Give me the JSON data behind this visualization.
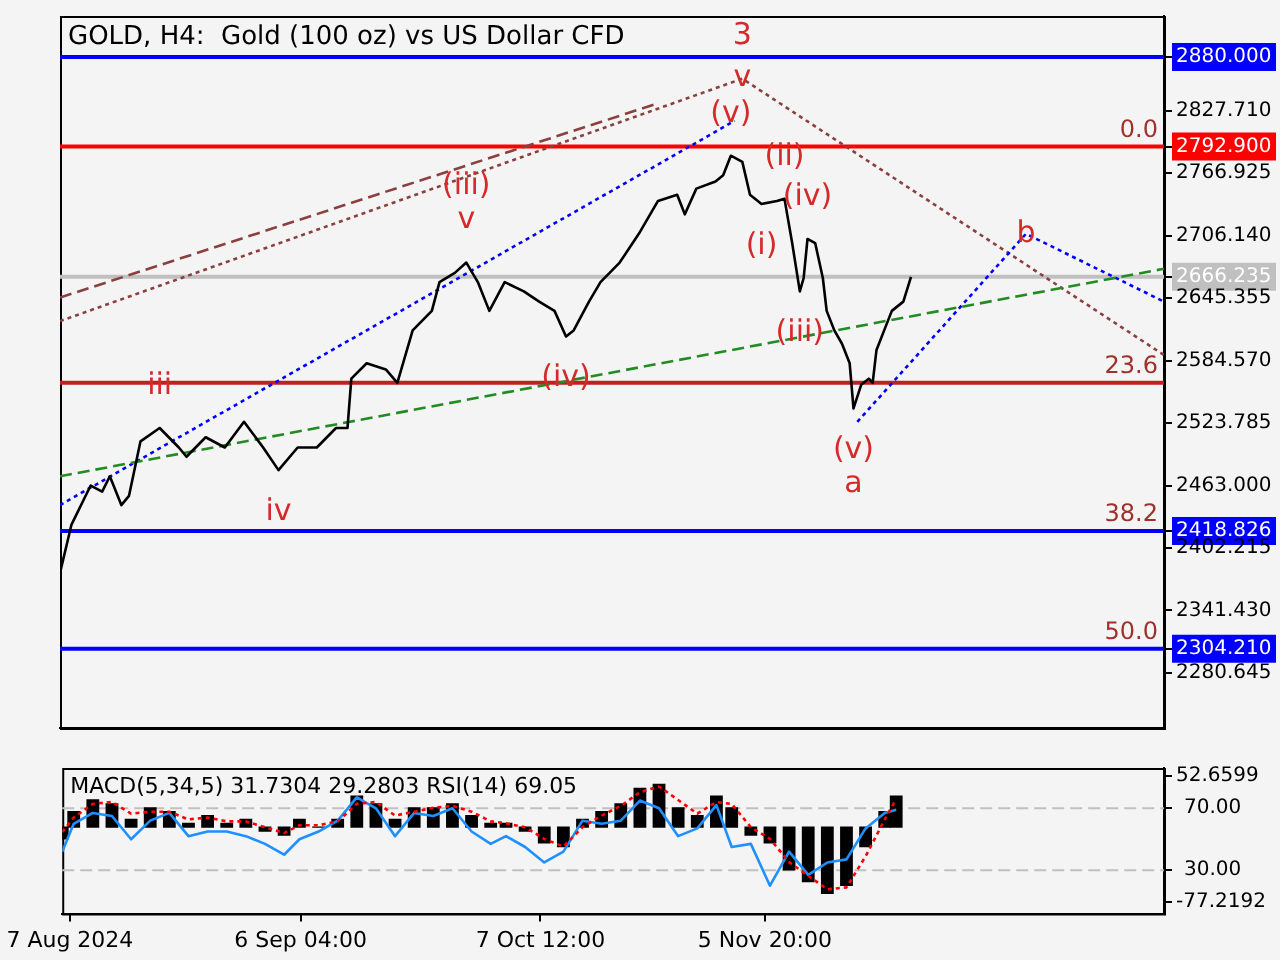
{
  "chart_data": [
    {
      "type": "line",
      "title": "GOLD, H4:  Gold (100 oz) vs US Dollar CFD",
      "xlim": [
        "2024-08-06",
        "2024-12-28"
      ],
      "ylim": [
        2227,
        2920
      ],
      "tick_labels": "y",
      "yticks": [
        {
          "value": 2880,
          "label": "2880.000"
        },
        {
          "value": 2827.71,
          "label": "2827.710"
        },
        {
          "value": 2792.9,
          "label": "2792.900"
        },
        {
          "value": 2766.925,
          "label": "2766.925"
        },
        {
          "value": 2706.14,
          "label": "2706.140"
        },
        {
          "value": 2666.235,
          "label": "2666.235"
        },
        {
          "value": 2645.355,
          "label": "2645.355"
        },
        {
          "value": 2584.57,
          "label": "2584.570"
        },
        {
          "value": 2523.785,
          "label": "2523.785"
        },
        {
          "value": 2463,
          "label": "2463.000"
        },
        {
          "value": 2418.826,
          "label": "2418.826"
        },
        {
          "value": 2402.215,
          "label": "2402.215"
        },
        {
          "value": 2341.43,
          "label": "2341.430"
        },
        {
          "value": 2304.21,
          "label": "2304.210"
        },
        {
          "value": 2280.645,
          "label": "2280.645"
        }
      ],
      "series": [
        {
          "color": "#000000",
          "line_style": "solid",
          "x": [
            "2024-08-06",
            "2024-08-07T12:00",
            "2024-08-10",
            "2024-08-11T12:00",
            "2024-08-12T12:00",
            "2024-08-14",
            "2024-08-15",
            "2024-08-16T12:00",
            "2024-08-19",
            "2024-08-21T12:00",
            "2024-08-22T12:00",
            "2024-08-25",
            "2024-08-27T12:00",
            "2024-08-30",
            "2024-09-01T12:00",
            "2024-09-03T12:00",
            "2024-09-06",
            "2024-09-08T12:00",
            "2024-09-11",
            "2024-09-12T12:00",
            "2024-09-13",
            "2024-09-15",
            "2024-09-17T12:00",
            "2024-09-19",
            "2024-09-21",
            "2024-09-23T12:00",
            "2024-09-24T12:00",
            "2024-09-26T12:00",
            "2024-09-28",
            "2024-09-29T12:00",
            "2024-10-01",
            "2024-10-03",
            "2024-10-05T12:00",
            "2024-10-07T12:00",
            "2024-10-09T12:00",
            "2024-10-11",
            "2024-10-12",
            "2024-10-14",
            "2024-10-15T12:00",
            "2024-10-18",
            "2024-10-20T12:00",
            "2024-10-23",
            "2024-10-25T12:00",
            "2024-10-26T12:00",
            "2024-10-28",
            "2024-10-30T12:00",
            "2024-10-31T12:00",
            "2024-11-01T12:00",
            "2024-11-03",
            "2024-11-04",
            "2024-11-05T12:00",
            "2024-11-07T12:00",
            "2024-11-08T12:00",
            "2024-11-09T12:00",
            "2024-11-10T12:00",
            "2024-11-11",
            "2024-11-11T12:00",
            "2024-11-12T12:00",
            "2024-11-13T12:00",
            "2024-11-14",
            "2024-11-15",
            "2024-11-16",
            "2024-11-17",
            "2024-11-17T12:00",
            "2024-11-18T12:00",
            "2024-11-19T12:00",
            "2024-11-20",
            "2024-11-20T12:00",
            "2024-11-21T12:00",
            "2024-11-22T12:00",
            "2024-11-24",
            "2024-11-25"
          ],
          "values": [
            2378,
            2425,
            2463,
            2457,
            2472,
            2444,
            2453,
            2506,
            2519,
            2500,
            2491,
            2510,
            2500,
            2525,
            2500,
            2478,
            2500,
            2500,
            2519,
            2519,
            2567,
            2582,
            2576,
            2563,
            2614,
            2633,
            2661,
            2670,
            2680,
            2661,
            2633,
            2661,
            2652,
            2642,
            2633,
            2608,
            2614,
            2642,
            2661,
            2680,
            2708,
            2740,
            2746,
            2727,
            2752,
            2759,
            2765,
            2784,
            2778,
            2746,
            2737,
            2740,
            2742,
            2699,
            2652,
            2665,
            2703,
            2699,
            2665,
            2633,
            2614,
            2601,
            2582,
            2538,
            2561,
            2567,
            2563,
            2595,
            2614,
            2633,
            2642,
            2666
          ]
        },
        {
          "color": "#228b22",
          "line_style": "dashed",
          "x": [
            "2024-08-06",
            "2024-12-28"
          ],
          "values": [
            2472,
            2674
          ]
        },
        {
          "color": "#0000ff",
          "line_style": "dotted",
          "x": [
            "2024-08-06",
            "2024-11-02"
          ],
          "values": [
            2444,
            2818
          ]
        },
        {
          "color": "#0000ff",
          "line_style": "dotted",
          "x": [
            "2024-11-18",
            "2024-12-10",
            "2024-12-28"
          ],
          "values": [
            2525,
            2708,
            2642
          ]
        },
        {
          "color": "#8b4040",
          "line_style": "dotted",
          "x": [
            "2024-08-06",
            "2024-11-03",
            "2024-12-28"
          ],
          "values": [
            2623,
            2859,
            2590
          ]
        },
        {
          "color": "#8b4040",
          "line_style": "dashed",
          "x": [
            "2024-08-06",
            "2024-10-23"
          ],
          "values": [
            2646,
            2835
          ]
        }
      ],
      "ref_lines": [
        {
          "axis": "y",
          "value": 2880,
          "color": "#0000ff"
        },
        {
          "axis": "y",
          "value": 2792.9,
          "color": "#ff0000"
        },
        {
          "axis": "y",
          "value": 2666.235,
          "color": "#c0c0c0"
        },
        {
          "axis": "y",
          "value": 2563,
          "color": "#c02020"
        },
        {
          "axis": "y",
          "value": 2418.826,
          "color": "#0000ff"
        },
        {
          "axis": "y",
          "value": 2304.21,
          "color": "#0000ff"
        }
      ],
      "annotations": [
        {
          "text": "v",
          "x": "2024-11-03",
          "y": 2859
        },
        {
          "text": "3",
          "x": "2024-11-03",
          "y": 2859
        },
        {
          "text": "(v)",
          "x": "2024-11-01T12:00",
          "y": 2784
        },
        {
          "text": "v",
          "x": "2024-09-28",
          "y": 2680
        },
        {
          "text": "(iii)",
          "x": "2024-09-28",
          "y": 2680
        },
        {
          "text": "iii",
          "x": "2024-08-19",
          "y": 2519
        },
        {
          "text": "iv",
          "x": "2024-09-03T12:00",
          "y": 2478
        },
        {
          "text": "(iv)",
          "x": "2024-10-11",
          "y": 2608
        },
        {
          "text": "(ii)",
          "x": "2024-11-08T12:00",
          "y": 2742
        },
        {
          "text": "(iv)",
          "x": "2024-11-11T12:00",
          "y": 2703
        },
        {
          "text": "(i)",
          "x": "2024-11-05T12:00",
          "y": 2737
        },
        {
          "text": "(iii)",
          "x": "2024-11-10T12:00",
          "y": 2652
        },
        {
          "text": "(v)",
          "x": "2024-11-17T12:00",
          "y": 2538
        },
        {
          "text": "a",
          "x": "2024-11-17T12:00",
          "y": 2538
        },
        {
          "text": "b",
          "x": "2024-12-10",
          "y": 2708
        },
        {
          "text": "0.0",
          "x": "2024-12-28",
          "y": 2792.9
        },
        {
          "text": "23.6",
          "x": "2024-12-28",
          "y": 2563
        },
        {
          "text": "38.2",
          "x": "2024-12-28",
          "y": 2418.826
        },
        {
          "text": "50.0",
          "x": "2024-12-28",
          "y": 2304.21
        }
      ]
    },
    {
      "type": "bar",
      "title": "MACD(5,34,5) 31.7304 29.2803 RSI(14) 69.05",
      "xlim": [
        "2024-08-06",
        "2024-12-28"
      ],
      "xticks": [
        {
          "value": "2024-08-07",
          "label": "7 Aug 2024"
        },
        {
          "value": "2024-09-06T04:00",
          "label": "6 Sep 04:00"
        },
        {
          "value": "2024-10-07T12:00",
          "label": "7 Oct 12:00"
        },
        {
          "value": "2024-11-05T20:00",
          "label": "5 Nov 20:00"
        }
      ],
      "ylim": [
        -89,
        61
      ],
      "yticks": [
        52.6599,
        -77.2192
      ],
      "y2lim": [
        2,
        96
      ],
      "y2ticks": [
        {
          "value": 70,
          "label": "70.00"
        },
        {
          "value": 30,
          "label": "30.00"
        }
      ],
      "x": [
        "2024-08-06",
        "2024-08-07T12:00",
        "2024-08-10",
        "2024-08-12T12:00",
        "2024-08-15",
        "2024-08-17T12:00",
        "2024-08-20",
        "2024-08-22T12:00",
        "2024-08-25",
        "2024-08-27T12:00",
        "2024-08-30",
        "2024-09-01T12:00",
        "2024-09-04",
        "2024-09-06",
        "2024-09-08T12:00",
        "2024-09-11",
        "2024-09-13T12:00",
        "2024-09-16",
        "2024-09-18T12:00",
        "2024-09-21",
        "2024-09-23T12:00",
        "2024-09-26",
        "2024-09-28T12:00",
        "2024-10-01",
        "2024-10-03",
        "2024-10-05T12:00",
        "2024-10-08",
        "2024-10-10T12:00",
        "2024-10-13",
        "2024-10-15T12:00",
        "2024-10-18",
        "2024-10-20T12:00",
        "2024-10-23",
        "2024-10-25T12:00",
        "2024-10-28",
        "2024-10-30T12:00",
        "2024-11-01T12:00",
        "2024-11-04",
        "2024-11-06T12:00",
        "2024-11-09",
        "2024-11-11T12:00",
        "2024-11-14",
        "2024-11-16T12:00",
        "2024-11-19",
        "2024-11-21T12:00",
        "2024-11-23"
      ],
      "series": [
        {
          "color": "#000000",
          "values": [
            -12,
            16,
            28,
            24,
            8,
            20,
            16,
            4,
            12,
            4,
            8,
            -4,
            -8,
            8,
            0,
            8,
            32,
            24,
            8,
            20,
            20,
            24,
            12,
            4,
            4,
            -4,
            -16,
            -20,
            8,
            16,
            24,
            40,
            44,
            20,
            12,
            32,
            20,
            -8,
            -16,
            -44,
            -56,
            -68,
            -60,
            -20,
            16,
            32
          ]
        },
        {
          "type": "line",
          "color": "#ff0000",
          "line_style": "dotted",
          "values": [
            -5,
            10,
            24,
            26,
            14,
            16,
            16,
            8,
            10,
            6,
            6,
            0,
            -6,
            2,
            2,
            6,
            24,
            26,
            12,
            16,
            20,
            22,
            16,
            6,
            4,
            0,
            -12,
            -20,
            0,
            12,
            22,
            36,
            42,
            28,
            14,
            26,
            24,
            0,
            -12,
            -36,
            -50,
            -64,
            -62,
            -30,
            8,
            29
          ]
        },
        {
          "type": "line",
          "color": "#1e90ff",
          "line_style": "solid",
          "axis": "y2",
          "values": [
            42,
            60,
            67,
            65,
            50,
            62,
            67,
            52,
            55,
            55,
            52,
            47,
            40,
            50,
            55,
            62,
            77,
            70,
            52,
            67,
            65,
            70,
            55,
            47,
            52,
            45,
            35,
            42,
            62,
            60,
            62,
            75,
            70,
            52,
            57,
            72,
            45,
            47,
            20,
            42,
            27,
            35,
            37,
            57,
            67,
            69
          ]
        }
      ],
      "ref_lines": [
        {
          "axis": "y2",
          "value": 70,
          "color": "#c0c0c0",
          "line_style": "dashed"
        },
        {
          "axis": "y2",
          "value": 30,
          "color": "#c0c0c0",
          "line_style": "dashed"
        }
      ]
    }
  ]
}
